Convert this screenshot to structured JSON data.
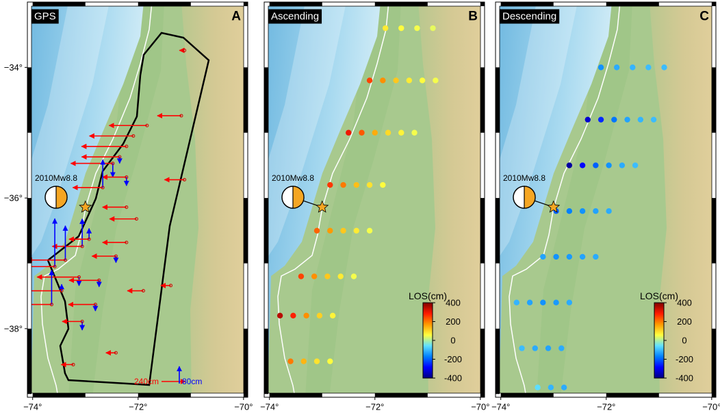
{
  "map": {
    "xlim": [
      -74.1,
      -69.92
    ],
    "ylim": [
      -33.0,
      -39.05
    ],
    "xticks": [
      {
        "value": -74,
        "label": "−74°"
      },
      {
        "value": -72,
        "label": "−72°"
      },
      {
        "value": -70,
        "label": "−70°"
      }
    ],
    "yticks": [
      {
        "value": -34,
        "label": "−34°"
      },
      {
        "value": -36,
        "label": "−36°"
      },
      {
        "value": -38,
        "label": "−38°"
      }
    ]
  },
  "epicenter": {
    "lon": -73.0,
    "lat": -36.14,
    "label": "2010Mw8.8"
  },
  "colorbar": {
    "title": "LOS(cm)",
    "clim": [
      -400,
      400
    ],
    "ticks": [
      400,
      200,
      0,
      -200,
      -400
    ],
    "colors": [
      "#000080",
      "#0000ff",
      "#0080ff",
      "#60e0ff",
      "#ffff40",
      "#ff9900",
      "#ff1a00",
      "#800000"
    ]
  },
  "panels": [
    {
      "letter": "A",
      "title": "GPS",
      "type": "gps",
      "east_color": "#ff0000",
      "up_color": "#0000ff",
      "stations": {
        "lon": [
          -71.18,
          -71.83,
          -72.09,
          -72.22,
          -72.35,
          -72.48,
          -71.12,
          -72.22,
          -72.67,
          -72.22,
          -72.03,
          -72.22,
          -72.42,
          -73.06,
          -73.38,
          -73.58,
          -73.12,
          -72.74,
          -73.45,
          -73.64,
          -72.81,
          -71.9,
          -71.38,
          -73.06,
          -72.42,
          -73.23,
          -71.12,
          -72.93
        ],
        "lat": [
          -34.74,
          -34.89,
          -35.05,
          -35.21,
          -35.37,
          -35.47,
          -35.72,
          -35.68,
          -35.84,
          -36.14,
          -36.32,
          -36.68,
          -36.89,
          -36.74,
          -36.95,
          -37.05,
          -37.21,
          -37.26,
          -37.42,
          -37.63,
          -37.63,
          -37.42,
          -37.34,
          -37.89,
          -38.37,
          -38.55,
          -33.74,
          -36.63
        ],
        "east": [
          -240,
          -380,
          -440,
          -450,
          -380,
          -420,
          -200,
          -240,
          -300,
          -240,
          -270,
          -240,
          -240,
          -300,
          -380,
          -400,
          -420,
          -300,
          -380,
          -300,
          -270,
          -160,
          -100,
          -200,
          -100,
          -120,
          -50,
          -200
        ],
        "up": [
          0,
          0,
          0,
          0,
          -30,
          -64,
          0,
          -40,
          130,
          0,
          0,
          0,
          -30,
          128,
          160,
          224,
          -40,
          -30,
          30,
          160,
          -30,
          0,
          0,
          -40,
          0,
          0,
          0,
          50
        ]
      },
      "scale": {
        "east": {
          "value": 240,
          "label": "240cm"
        },
        "up": {
          "value": 80,
          "label": "80cm"
        }
      }
    },
    {
      "letter": "B",
      "title": "Ascending",
      "type": "insar",
      "points": {
        "lon": [
          -71.8,
          -71.5,
          -71.2,
          -70.9,
          -72.1,
          -71.85,
          -71.6,
          -71.35,
          -71.1,
          -70.85,
          -72.5,
          -72.25,
          -72.0,
          -71.75,
          -71.5,
          -71.25,
          -72.85,
          -72.6,
          -72.35,
          -72.1,
          -71.85,
          -73.1,
          -72.85,
          -72.6,
          -72.35,
          -72.1,
          -73.4,
          -73.15,
          -72.9,
          -72.65,
          -72.4,
          -73.8,
          -73.55,
          -73.3,
          -73.05,
          -72.8,
          -73.6,
          -73.35,
          -73.1,
          -72.85
        ],
        "lat": [
          -33.4,
          -33.4,
          -33.4,
          -33.4,
          -34.2,
          -34.2,
          -34.2,
          -34.2,
          -34.2,
          -34.2,
          -35.0,
          -35.0,
          -35.0,
          -35.0,
          -35.0,
          -35.0,
          -35.8,
          -35.8,
          -35.8,
          -35.8,
          -35.8,
          -36.5,
          -36.5,
          -36.5,
          -36.5,
          -36.5,
          -37.2,
          -37.2,
          -37.2,
          -37.2,
          -37.2,
          -37.8,
          -37.8,
          -37.8,
          -37.8,
          -37.8,
          -38.5,
          -38.5,
          -38.5,
          -38.5
        ],
        "los": [
          80,
          60,
          50,
          40,
          250,
          180,
          120,
          80,
          60,
          50,
          300,
          230,
          150,
          100,
          70,
          50,
          260,
          200,
          130,
          90,
          60,
          220,
          170,
          120,
          80,
          50,
          250,
          180,
          120,
          80,
          50,
          350,
          280,
          180,
          110,
          70,
          200,
          140,
          90,
          60
        ]
      }
    },
    {
      "letter": "C",
      "title": "Descending",
      "type": "insar",
      "points": {
        "lon": [
          -72.1,
          -71.8,
          -71.5,
          -71.2,
          -70.9,
          -72.35,
          -72.1,
          -71.85,
          -71.6,
          -71.35,
          -71.1,
          -72.7,
          -72.45,
          -72.2,
          -71.95,
          -71.7,
          -71.45,
          -72.95,
          -72.7,
          -72.45,
          -72.2,
          -71.95,
          -73.2,
          -72.95,
          -72.7,
          -72.45,
          -72.2,
          -73.7,
          -73.45,
          -73.2,
          -72.95,
          -72.7,
          -73.6,
          -73.35,
          -73.1,
          -72.85,
          -73.3,
          -73.05,
          -72.8
        ],
        "lat": [
          -34.0,
          -34.0,
          -34.0,
          -34.0,
          -34.0,
          -34.8,
          -34.8,
          -34.8,
          -34.8,
          -34.8,
          -34.8,
          -35.5,
          -35.5,
          -35.5,
          -35.5,
          -35.5,
          -35.5,
          -36.2,
          -36.2,
          -36.2,
          -36.2,
          -36.2,
          -36.9,
          -36.9,
          -36.9,
          -36.9,
          -36.9,
          -37.6,
          -37.6,
          -37.6,
          -37.6,
          -37.6,
          -38.3,
          -38.3,
          -38.3,
          -38.3,
          -38.9,
          -38.9,
          -38.9
        ],
        "los": [
          -150,
          -120,
          -110,
          -100,
          -100,
          -330,
          -250,
          -180,
          -130,
          -110,
          -100,
          -370,
          -280,
          -200,
          -150,
          -120,
          -100,
          -200,
          -170,
          -150,
          -130,
          -120,
          -130,
          -150,
          -140,
          -130,
          -120,
          -110,
          -130,
          -150,
          -140,
          -120,
          -100,
          -120,
          -130,
          -120,
          -60,
          -110,
          -120
        ]
      }
    }
  ]
}
